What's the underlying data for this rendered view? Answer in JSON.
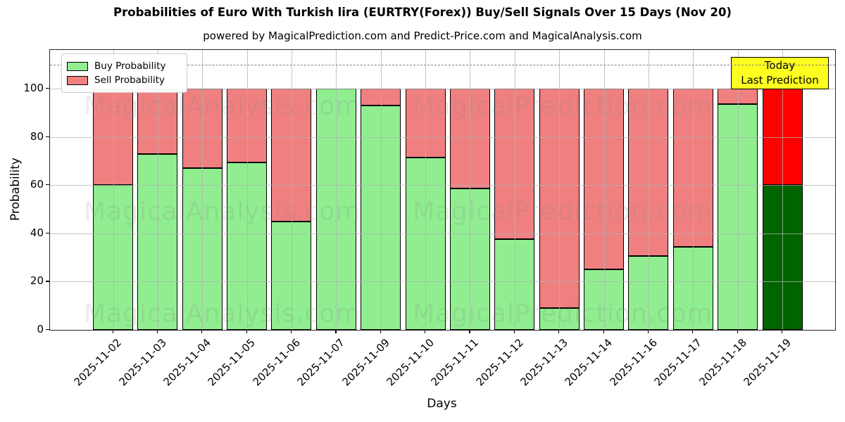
{
  "figure": {
    "title": "Probabilities of Euro With Turkish lira (EURTRY(Forex)) Buy/Sell Signals Over 15 Days (Nov 20)",
    "subtitle": "powered by MagicalPrediction.com and Predict-Price.com and MagicalAnalysis.com"
  },
  "chart_data": {
    "type": "bar",
    "stacked": true,
    "title": "Probabilities of Euro With Turkish lira (EURTRY(Forex)) Buy/Sell Signals Over 15 Days (Nov 20)",
    "subtitle": "powered by MagicalPrediction.com and Predict-Price.com and MagicalAnalysis.com",
    "xlabel": "Days",
    "ylabel": "Probability",
    "categories": [
      "2025-11-02",
      "2025-11-03",
      "2025-11-04",
      "2025-11-05",
      "2025-11-06",
      "2025-11-07",
      "2025-11-09",
      "2025-11-10",
      "2025-11-11",
      "2025-11-12",
      "2025-11-13",
      "2025-11-14",
      "2025-11-16",
      "2025-11-17",
      "2025-11-18",
      "2025-11-19"
    ],
    "series": [
      {
        "name": "Buy Probability",
        "color": "#90EE90",
        "today_color": "#006400",
        "values": [
          60,
          73,
          67,
          69.5,
          45,
          100,
          93,
          71.5,
          58.5,
          37.5,
          9,
          25,
          30.5,
          34.5,
          93.5,
          60
        ]
      },
      {
        "name": "Sell Probability",
        "color": "#F08080",
        "today_color": "#FF0000",
        "values": [
          40,
          27,
          33,
          30.5,
          55,
          0,
          7,
          28.5,
          41.5,
          62.5,
          91,
          75,
          69.5,
          65.5,
          6.5,
          40
        ]
      }
    ],
    "yticks": [
      0,
      20,
      40,
      60,
      80,
      100
    ],
    "ylim": [
      0,
      116
    ],
    "grid": true,
    "bar_edge_color": "#000000",
    "dashed_line_y": 110,
    "legend_position": "upper-left",
    "annotation": {
      "lines": [
        "Today",
        "Last Prediction"
      ],
      "bg_color": "#FFFF00"
    },
    "watermarks": {
      "left_text": "MagicalAnalysis.com",
      "right_text": "MagicalPrediction.com"
    }
  }
}
